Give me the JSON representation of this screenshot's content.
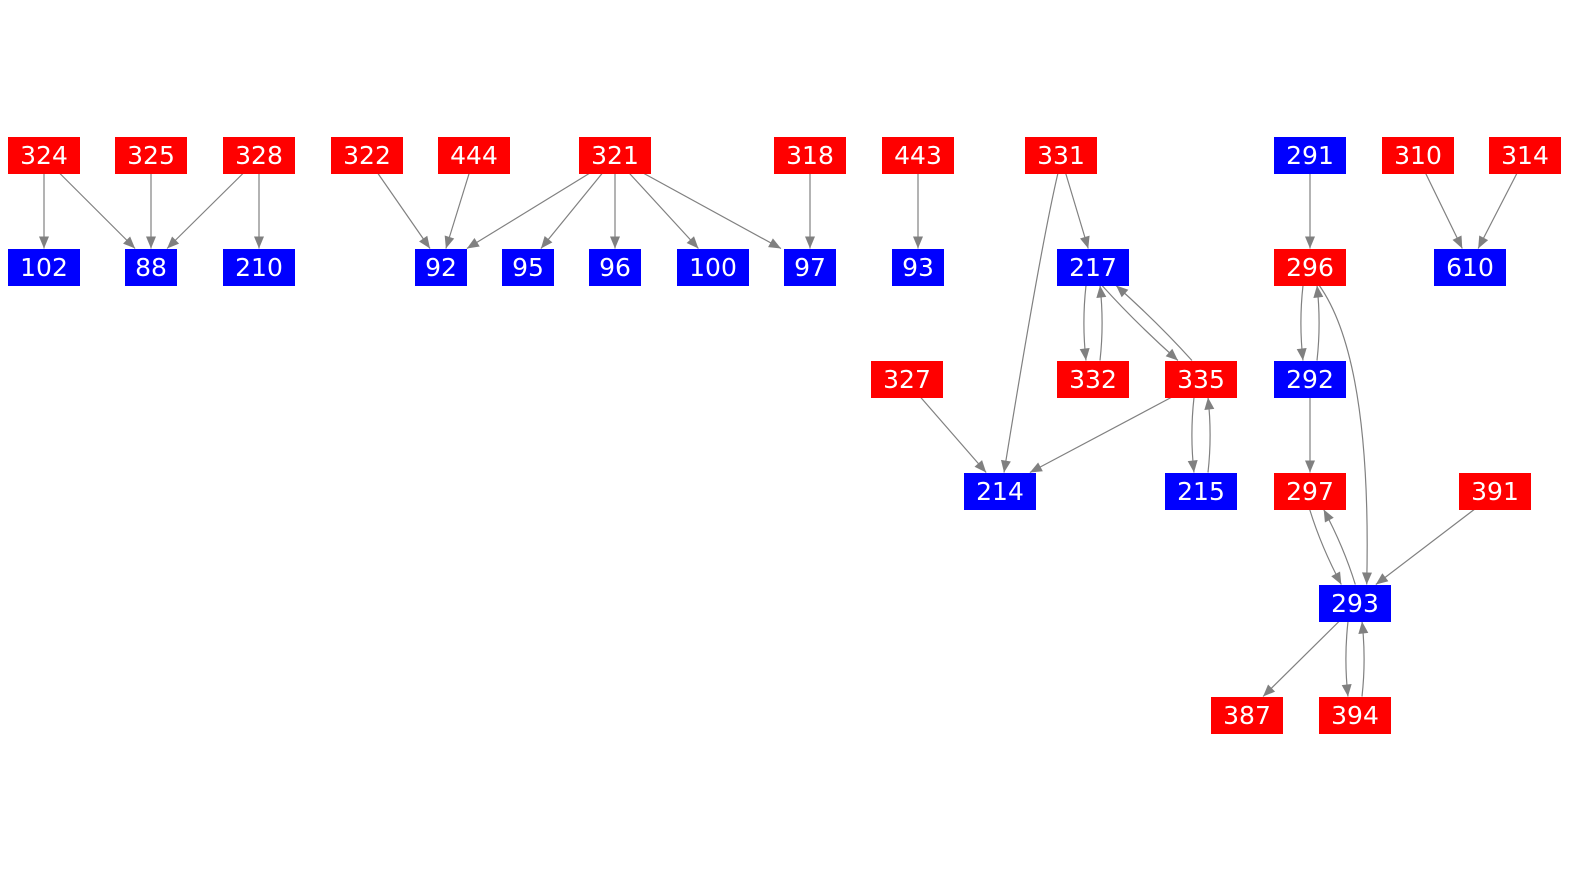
{
  "colors": {
    "red": "#ff0000",
    "blue": "#0000ff",
    "edge": "#808080",
    "text": "#ffffff"
  },
  "nodes": [
    {
      "id": "324",
      "color": "red"
    },
    {
      "id": "325",
      "color": "red"
    },
    {
      "id": "328",
      "color": "red"
    },
    {
      "id": "322",
      "color": "red"
    },
    {
      "id": "444",
      "color": "red"
    },
    {
      "id": "321",
      "color": "red"
    },
    {
      "id": "318",
      "color": "red"
    },
    {
      "id": "443",
      "color": "red"
    },
    {
      "id": "331",
      "color": "red"
    },
    {
      "id": "291",
      "color": "blue"
    },
    {
      "id": "310",
      "color": "red"
    },
    {
      "id": "314",
      "color": "red"
    },
    {
      "id": "102",
      "color": "blue"
    },
    {
      "id": "88",
      "color": "blue"
    },
    {
      "id": "210",
      "color": "blue"
    },
    {
      "id": "92",
      "color": "blue"
    },
    {
      "id": "95",
      "color": "blue"
    },
    {
      "id": "96",
      "color": "blue"
    },
    {
      "id": "100",
      "color": "blue"
    },
    {
      "id": "97",
      "color": "blue"
    },
    {
      "id": "93",
      "color": "blue"
    },
    {
      "id": "217",
      "color": "blue"
    },
    {
      "id": "296",
      "color": "red"
    },
    {
      "id": "610",
      "color": "blue"
    },
    {
      "id": "327",
      "color": "red"
    },
    {
      "id": "332",
      "color": "red"
    },
    {
      "id": "335",
      "color": "red"
    },
    {
      "id": "292",
      "color": "blue"
    },
    {
      "id": "214",
      "color": "blue"
    },
    {
      "id": "215",
      "color": "blue"
    },
    {
      "id": "297",
      "color": "red"
    },
    {
      "id": "391",
      "color": "red"
    },
    {
      "id": "293",
      "color": "blue"
    },
    {
      "id": "387",
      "color": "red"
    },
    {
      "id": "394",
      "color": "red"
    }
  ],
  "edges": [
    [
      "324",
      "102"
    ],
    [
      "324",
      "88"
    ],
    [
      "325",
      "88"
    ],
    [
      "328",
      "88"
    ],
    [
      "328",
      "210"
    ],
    [
      "322",
      "92"
    ],
    [
      "444",
      "92"
    ],
    [
      "321",
      "92"
    ],
    [
      "321",
      "95"
    ],
    [
      "321",
      "96"
    ],
    [
      "321",
      "100"
    ],
    [
      "321",
      "97"
    ],
    [
      "318",
      "97"
    ],
    [
      "443",
      "93"
    ],
    [
      "331",
      "217"
    ],
    [
      "331",
      "214"
    ],
    [
      "217",
      "332"
    ],
    [
      "332",
      "217"
    ],
    [
      "217",
      "335"
    ],
    [
      "335",
      "217"
    ],
    [
      "327",
      "214"
    ],
    [
      "335",
      "214"
    ],
    [
      "335",
      "215"
    ],
    [
      "215",
      "335"
    ],
    [
      "291",
      "296"
    ],
    [
      "296",
      "292"
    ],
    [
      "292",
      "296"
    ],
    [
      "296",
      "293"
    ],
    [
      "292",
      "297"
    ],
    [
      "297",
      "293"
    ],
    [
      "293",
      "297"
    ],
    [
      "391",
      "293"
    ],
    [
      "310",
      "610"
    ],
    [
      "314",
      "610"
    ],
    [
      "293",
      "387"
    ],
    [
      "293",
      "394"
    ],
    [
      "394",
      "293"
    ]
  ]
}
